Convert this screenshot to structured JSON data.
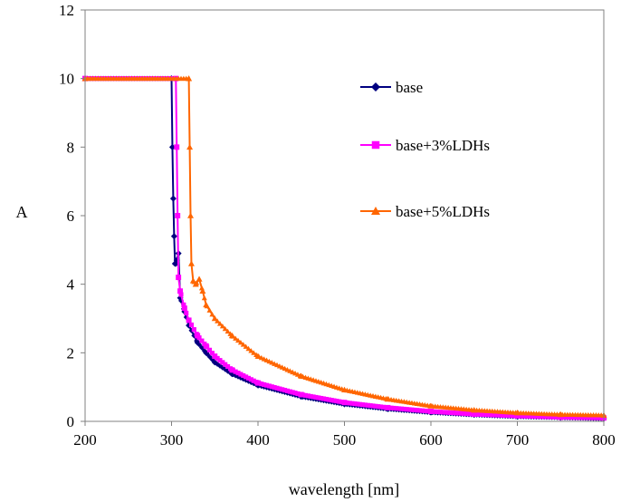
{
  "chart_data": {
    "type": "line",
    "title": "",
    "xlabel": "wavelength [nm]",
    "ylabel": "A",
    "xlim": [
      200,
      800
    ],
    "ylim": [
      0,
      12
    ],
    "xticks": [
      "200",
      "300",
      "400",
      "500",
      "600",
      "700",
      "800"
    ],
    "yticks": [
      "0",
      "2",
      "4",
      "6",
      "8",
      "10",
      "12"
    ],
    "grid": false,
    "legend": "inside-top-right",
    "series": [
      {
        "name": "base",
        "color": "#000080",
        "marker": "diamond",
        "points": [
          [
            200,
            10
          ],
          [
            300,
            10
          ],
          [
            301,
            8
          ],
          [
            302,
            6.5
          ],
          [
            303,
            5.4
          ],
          [
            304,
            4.6
          ],
          [
            305,
            4.6
          ],
          [
            306,
            4.7
          ],
          [
            308,
            4.9
          ],
          [
            310,
            3.6
          ],
          [
            315,
            3.2
          ],
          [
            320,
            2.8
          ],
          [
            330,
            2.3
          ],
          [
            340,
            2.0
          ],
          [
            350,
            1.72
          ],
          [
            370,
            1.38
          ],
          [
            400,
            1.05
          ],
          [
            450,
            0.72
          ],
          [
            500,
            0.5
          ],
          [
            550,
            0.36
          ],
          [
            600,
            0.26
          ],
          [
            650,
            0.19
          ],
          [
            700,
            0.14
          ],
          [
            750,
            0.11
          ],
          [
            800,
            0.08
          ]
        ]
      },
      {
        "name": "base+3%LDHs",
        "color": "#FF00FF",
        "marker": "square",
        "points": [
          [
            200,
            10
          ],
          [
            305,
            10
          ],
          [
            306,
            8
          ],
          [
            307,
            6
          ],
          [
            308,
            4.2
          ],
          [
            310,
            3.8
          ],
          [
            315,
            3.3
          ],
          [
            320,
            2.95
          ],
          [
            330,
            2.5
          ],
          [
            340,
            2.2
          ],
          [
            350,
            1.9
          ],
          [
            370,
            1.5
          ],
          [
            400,
            1.12
          ],
          [
            450,
            0.78
          ],
          [
            500,
            0.55
          ],
          [
            550,
            0.4
          ],
          [
            600,
            0.29
          ],
          [
            650,
            0.21
          ],
          [
            700,
            0.16
          ],
          [
            750,
            0.12
          ],
          [
            800,
            0.1
          ]
        ]
      },
      {
        "name": "base+5%LDHs",
        "color": "#FF6600",
        "marker": "triangle",
        "points": [
          [
            200,
            10
          ],
          [
            320,
            10
          ],
          [
            321,
            8
          ],
          [
            322,
            6
          ],
          [
            323,
            4.6
          ],
          [
            325,
            4.1
          ],
          [
            328,
            4.0
          ],
          [
            332,
            4.15
          ],
          [
            336,
            3.8
          ],
          [
            340,
            3.4
          ],
          [
            350,
            3.0
          ],
          [
            370,
            2.5
          ],
          [
            400,
            1.9
          ],
          [
            450,
            1.32
          ],
          [
            500,
            0.92
          ],
          [
            550,
            0.65
          ],
          [
            600,
            0.45
          ],
          [
            650,
            0.33
          ],
          [
            700,
            0.25
          ],
          [
            750,
            0.2
          ],
          [
            800,
            0.18
          ]
        ]
      }
    ]
  }
}
